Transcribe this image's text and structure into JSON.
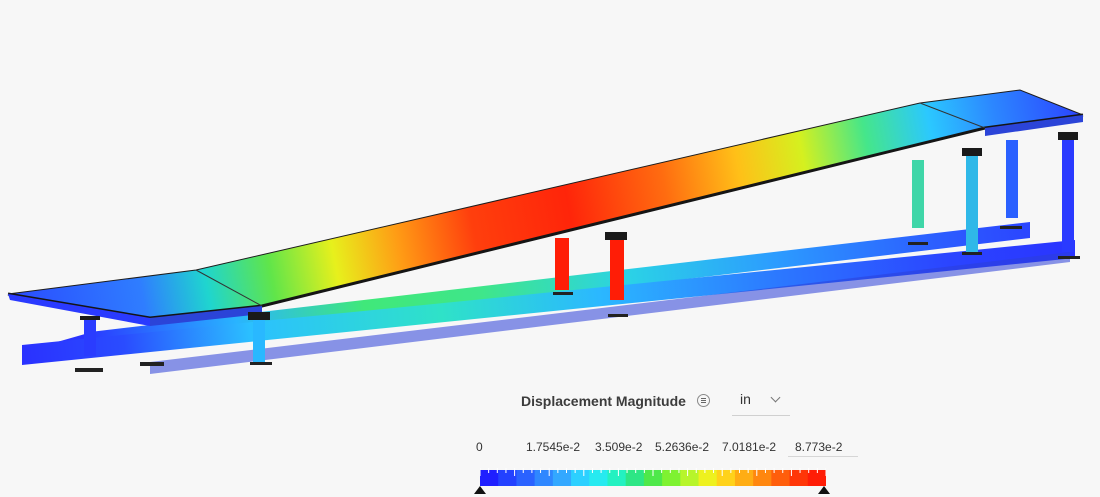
{
  "legend": {
    "title": "Displacement Magnitude",
    "menu_icon": "menu-lines-icon",
    "unit": "in",
    "unit_options_visible": [
      "in"
    ],
    "ticks": [
      "0",
      "1.7545e-2",
      "3.509e-2",
      "5.2636e-2",
      "7.0181e-2",
      "8.773e-2"
    ],
    "colors": [
      "#1f1fff",
      "#2341ff",
      "#2a62ff",
      "#2f87ff",
      "#33a8ff",
      "#2cd0ff",
      "#27eaf0",
      "#23f1c1",
      "#2de685",
      "#4ee84a",
      "#7ef231",
      "#b7f52a",
      "#eef11f",
      "#ffd21a",
      "#ffad14",
      "#ff870f",
      "#ff5e0c",
      "#ff3608",
      "#ff1d06"
    ]
  }
}
